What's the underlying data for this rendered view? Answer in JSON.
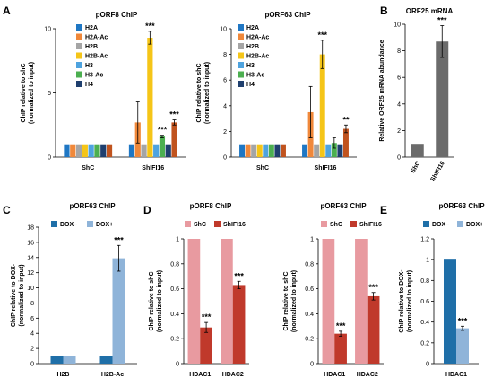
{
  "panels": [
    {
      "label": "A",
      "x": 3,
      "y": 4
    },
    {
      "label": "B",
      "x": 424,
      "y": 4
    },
    {
      "label": "C",
      "x": 3,
      "y": 226
    },
    {
      "label": "D",
      "x": 160,
      "y": 226
    },
    {
      "label": "E",
      "x": 424,
      "y": 226
    }
  ],
  "colors": {
    "H2A": "#1f77c4",
    "H2A-Ac": "#f0883a",
    "H2B": "#a5a5a5",
    "H2B-Ac": "#f5c518",
    "H3": "#4ea3df",
    "H3-Ac": "#4caf50",
    "H4": "#1f3f6e",
    "gray": "#6b6b6b",
    "dox_minus": "#1f6fa8",
    "dox_plus": "#8fb4d9",
    "shc_pink": "#e89aa0",
    "shifi_red": "#c0392b"
  },
  "chart_data": [
    {
      "id": "A1",
      "type": "bar",
      "title": "pORF8 ChIP",
      "ylabel": "ChIP relative to shC\n(normalized to input)",
      "ylim": [
        0,
        10
      ],
      "yticks": [
        0,
        5,
        10
      ],
      "categories": [
        "ShC",
        "ShIFI16"
      ],
      "legend": "top-left",
      "series": [
        {
          "name": "H2A",
          "color": "#1f77c4",
          "values": [
            1,
            1
          ],
          "errors": [
            0,
            0
          ],
          "sig": [
            "",
            ""
          ]
        },
        {
          "name": "H2A-Ac",
          "color": "#f0883a",
          "values": [
            1,
            2.7
          ],
          "errors": [
            0,
            1.6
          ],
          "sig": [
            "",
            ""
          ]
        },
        {
          "name": "H2B",
          "color": "#a5a5a5",
          "values": [
            1,
            1
          ],
          "errors": [
            0,
            0
          ],
          "sig": [
            "",
            ""
          ]
        },
        {
          "name": "H2B-Ac",
          "color": "#f5c518",
          "values": [
            1,
            9.3
          ],
          "errors": [
            0,
            0.5
          ],
          "sig": [
            "",
            "***"
          ]
        },
        {
          "name": "H3",
          "color": "#4ea3df",
          "values": [
            1,
            1
          ],
          "errors": [
            0,
            0
          ],
          "sig": [
            "",
            ""
          ]
        },
        {
          "name": "H3-Ac",
          "color": "#4caf50",
          "values": [
            1,
            1.6
          ],
          "errors": [
            0,
            0.1
          ],
          "sig": [
            "",
            "***"
          ]
        },
        {
          "name": "H4",
          "color": "#1f3f6e",
          "values": [
            1,
            1
          ],
          "errors": [
            0,
            0
          ],
          "sig": [
            "",
            ""
          ]
        },
        {
          "name": "",
          "color": "#c0531e",
          "values": [
            1,
            2.7
          ],
          "errors": [
            0,
            0.2
          ],
          "sig": [
            "",
            "***"
          ]
        }
      ]
    },
    {
      "id": "A2",
      "type": "bar",
      "title": "pORF63 ChIP",
      "ylabel": "ChIP relative to shC\n(normalized to input)",
      "ylim": [
        0,
        10
      ],
      "yticks": [
        0,
        2,
        4,
        6,
        8,
        10
      ],
      "categories": [
        "ShC",
        "ShIFI16"
      ],
      "legend": "top-left",
      "series": [
        {
          "name": "H2A",
          "color": "#1f77c4",
          "values": [
            1,
            1
          ],
          "errors": [
            0,
            0
          ],
          "sig": [
            "",
            ""
          ]
        },
        {
          "name": "H2A-Ac",
          "color": "#f0883a",
          "values": [
            1,
            3.5
          ],
          "errors": [
            0,
            2.0
          ],
          "sig": [
            "",
            ""
          ]
        },
        {
          "name": "H2B",
          "color": "#a5a5a5",
          "values": [
            1,
            1
          ],
          "errors": [
            0,
            0
          ],
          "sig": [
            "",
            ""
          ]
        },
        {
          "name": "H2B-Ac",
          "color": "#f5c518",
          "values": [
            1,
            8.0
          ],
          "errors": [
            0,
            1.1
          ],
          "sig": [
            "",
            "***"
          ]
        },
        {
          "name": "H3",
          "color": "#4ea3df",
          "values": [
            1,
            1
          ],
          "errors": [
            0,
            0
          ],
          "sig": [
            "",
            ""
          ]
        },
        {
          "name": "H3-Ac",
          "color": "#4caf50",
          "values": [
            1,
            1.1
          ],
          "errors": [
            0,
            0.4
          ],
          "sig": [
            "",
            ""
          ]
        },
        {
          "name": "H4",
          "color": "#1f3f6e",
          "values": [
            1,
            1
          ],
          "errors": [
            0,
            0
          ],
          "sig": [
            "",
            ""
          ]
        },
        {
          "name": "",
          "color": "#c0531e",
          "values": [
            1,
            2.2
          ],
          "errors": [
            0,
            0.3
          ],
          "sig": [
            "",
            "**"
          ]
        }
      ]
    },
    {
      "id": "B",
      "type": "bar",
      "title": "ORF25 mRNA",
      "ylabel": "Relative ORF25 mRNA abundance",
      "ylim": [
        0,
        10
      ],
      "yticks": [
        0,
        2,
        4,
        6,
        8,
        10
      ],
      "categories": [
        "ShC",
        "ShIFI16"
      ],
      "legend": "none",
      "series": [
        {
          "name": "",
          "color": "#6b6b6b",
          "values": [
            1,
            8.7
          ],
          "errors": [
            0,
            1.2
          ],
          "sig": [
            "",
            "***"
          ]
        }
      ]
    },
    {
      "id": "C",
      "type": "bar",
      "title": "pORF63 ChIP",
      "ylabel": "ChIP relative to DOX-\n(normalized to input)",
      "ylim": [
        0,
        18
      ],
      "yticks": [
        0,
        2,
        4,
        6,
        8,
        10,
        12,
        14,
        16,
        18
      ],
      "categories": [
        "H2B",
        "H2B-Ac"
      ],
      "legend": "top",
      "series": [
        {
          "name": "DOX−",
          "color": "#1f6fa8",
          "values": [
            1,
            1
          ],
          "errors": [
            0,
            0
          ],
          "sig": [
            "",
            ""
          ]
        },
        {
          "name": "DOX+",
          "color": "#8fb4d9",
          "values": [
            1,
            13.9
          ],
          "errors": [
            0,
            1.7
          ],
          "sig": [
            "",
            "***"
          ]
        }
      ]
    },
    {
      "id": "D1",
      "type": "bar",
      "title": "pORF8 ChIP",
      "ylabel": "ChIP relative to shC\n(normalized to input)",
      "ylim": [
        0,
        1
      ],
      "yticks": [
        0,
        0.2,
        0.4,
        0.6,
        0.8,
        1
      ],
      "categories": [
        "HDAC1",
        "HDAC2"
      ],
      "legend": "top",
      "series": [
        {
          "name": "ShC",
          "color": "#e89aa0",
          "values": [
            1,
            1
          ],
          "errors": [
            0,
            0
          ],
          "sig": [
            "",
            ""
          ]
        },
        {
          "name": "ShIFI16",
          "color": "#c0392b",
          "values": [
            0.29,
            0.63
          ],
          "errors": [
            0.04,
            0.03
          ],
          "sig": [
            "***",
            "***"
          ]
        }
      ]
    },
    {
      "id": "D2",
      "type": "bar",
      "title": "pORF63 ChIP",
      "ylabel": "ChIP relative to shC\n(normalized to input)",
      "ylim": [
        0,
        1
      ],
      "yticks": [
        0,
        0.2,
        0.4,
        0.6,
        0.8,
        1
      ],
      "categories": [
        "HDAC1",
        "HDAC2"
      ],
      "legend": "top",
      "series": [
        {
          "name": "ShC",
          "color": "#e89aa0",
          "values": [
            1,
            1
          ],
          "errors": [
            0,
            0
          ],
          "sig": [
            "",
            ""
          ]
        },
        {
          "name": "ShIFI16",
          "color": "#c0392b",
          "values": [
            0.24,
            0.54
          ],
          "errors": [
            0.02,
            0.03
          ],
          "sig": [
            "***",
            "***"
          ]
        }
      ]
    },
    {
      "id": "E",
      "type": "bar",
      "title": "pORF63 ChIP",
      "ylabel": "ChIP relative to DOX-\n(normalized to input)",
      "ylim": [
        0,
        1.2
      ],
      "yticks": [
        0,
        0.2,
        0.4,
        0.6,
        0.8,
        1,
        1.2
      ],
      "categories": [
        "HDAC1"
      ],
      "legend": "top",
      "series": [
        {
          "name": "DOX−",
          "color": "#1f6fa8",
          "values": [
            1
          ],
          "errors": [
            0
          ],
          "sig": [
            ""
          ]
        },
        {
          "name": "DOX+",
          "color": "#8fb4d9",
          "values": [
            0.34
          ],
          "errors": [
            0.02
          ],
          "sig": [
            "***"
          ]
        }
      ]
    }
  ]
}
